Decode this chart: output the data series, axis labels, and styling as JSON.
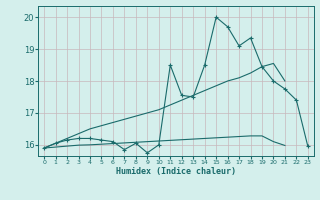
{
  "xlabel": "Humidex (Indice chaleur)",
  "bg_color": "#d4efec",
  "line_color": "#1a6b6b",
  "grid_color": "#c8b8bc",
  "x_data": [
    0,
    1,
    2,
    3,
    4,
    5,
    6,
    7,
    8,
    9,
    10,
    11,
    12,
    13,
    14,
    15,
    16,
    17,
    18,
    19,
    20,
    21,
    22,
    23
  ],
  "y_jagged": [
    15.9,
    16.05,
    16.15,
    16.2,
    16.2,
    16.15,
    16.1,
    15.85,
    16.05,
    15.75,
    16.0,
    18.5,
    17.55,
    17.5,
    18.5,
    20.0,
    19.7,
    19.1,
    19.35,
    18.45,
    18.0,
    17.75,
    17.4,
    15.95
  ],
  "y_upper": [
    15.9,
    16.05,
    16.2,
    16.35,
    16.5,
    16.6,
    16.7,
    16.8,
    16.9,
    17.0,
    17.1,
    17.25,
    17.4,
    17.55,
    17.7,
    17.85,
    18.0,
    18.1,
    18.25,
    18.45,
    18.55,
    18.0,
    null,
    null
  ],
  "y_lower": [
    15.9,
    15.93,
    15.96,
    15.99,
    16.0,
    16.02,
    16.04,
    16.06,
    16.08,
    16.1,
    16.12,
    16.14,
    16.16,
    16.18,
    16.2,
    16.22,
    16.24,
    16.26,
    16.28,
    16.28,
    16.1,
    15.98,
    null,
    null
  ],
  "xlim": [
    -0.5,
    23.5
  ],
  "ylim": [
    15.65,
    20.35
  ],
  "yticks": [
    16,
    17,
    18,
    19,
    20
  ],
  "xticks": [
    0,
    1,
    2,
    3,
    4,
    5,
    6,
    7,
    8,
    9,
    10,
    11,
    12,
    13,
    14,
    15,
    16,
    17,
    18,
    19,
    20,
    21,
    22,
    23
  ]
}
